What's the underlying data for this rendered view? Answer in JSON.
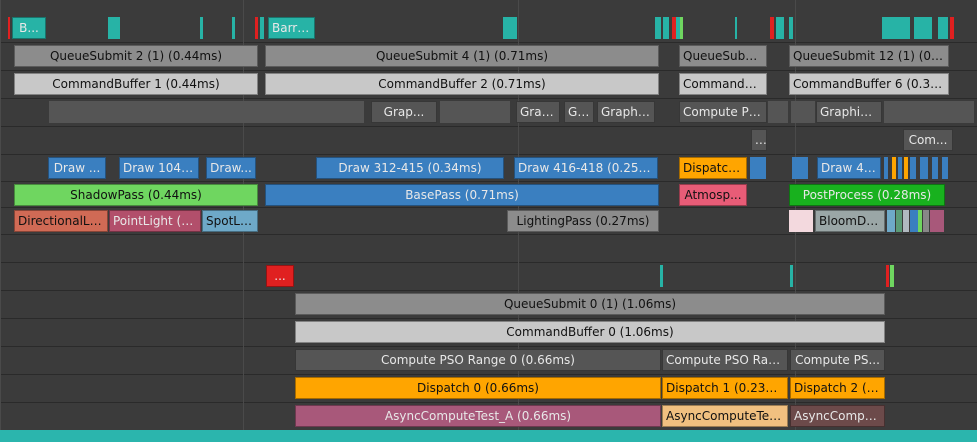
{
  "colors": {
    "background": "#3b3b3b",
    "teal": "#27b3a6",
    "red": "#e02020",
    "gray_mid": "#8c8c8c",
    "gray_light": "#c8c8c8",
    "gray_dark": "#555555",
    "blue": "#3a7fc0",
    "orange": "#ffa500",
    "green": "#6fd660",
    "bright_green": "#18b11e",
    "salmon": "#d06a55",
    "rose": "#b24f6b",
    "sky": "#6ea9c8",
    "pink": "#e85c77",
    "mauve": "#a8587a",
    "peach": "#f0c080",
    "brown": "#6c4a4a"
  },
  "blocks": [
    {
      "label": "B...",
      "color": "#27b3a6",
      "tone": "dark",
      "lane": 0
    },
    {
      "label": "Barri...",
      "color": "#27b3a6",
      "tone": "dark",
      "lane": 0
    },
    {
      "label": "QueueSubmit 2 (1) (0.44ms)",
      "color": "#8c8c8c",
      "tone": "light",
      "lane": 1
    },
    {
      "label": "QueueSubmit 4 (1) (0.71ms)",
      "color": "#8c8c8c",
      "tone": "light",
      "lane": 1
    },
    {
      "label": "QueueSubmi...",
      "color": "#8c8c8c",
      "tone": "light",
      "lane": 1
    },
    {
      "label": "QueueSubmit 12 (1) (0.30...",
      "color": "#8c8c8c",
      "tone": "light",
      "lane": 1
    },
    {
      "label": "CommandBuffer 1 (0.44ms)",
      "color": "#c8c8c8",
      "tone": "light",
      "lane": 2
    },
    {
      "label": "CommandBuffer 2 (0.71ms)",
      "color": "#c8c8c8",
      "tone": "light",
      "lane": 2
    },
    {
      "label": "CommandB...",
      "color": "#c8c8c8",
      "tone": "light",
      "lane": 2
    },
    {
      "label": "CommandBuffer 6 (0.30ms)",
      "color": "#c8c8c8",
      "tone": "light",
      "lane": 2
    },
    {
      "label": "Grap...",
      "color": "#555555",
      "tone": "dark",
      "lane": 3
    },
    {
      "label": "Grap...",
      "color": "#555555",
      "tone": "dark",
      "lane": 3
    },
    {
      "label": "Gr...",
      "color": "#555555",
      "tone": "dark",
      "lane": 3
    },
    {
      "label": "Graphic...",
      "color": "#555555",
      "tone": "dark",
      "lane": 3
    },
    {
      "label": "Compute PS...",
      "color": "#555555",
      "tone": "dark",
      "lane": 3
    },
    {
      "label": "Graphics ...",
      "color": "#555555",
      "tone": "dark",
      "lane": 3
    },
    {
      "label": "...",
      "color": "#555555",
      "tone": "dark",
      "lane": 4
    },
    {
      "label": "Com...",
      "color": "#555555",
      "tone": "dark",
      "lane": 4
    },
    {
      "label": "Draw ...",
      "color": "#3a7fc0",
      "tone": "dark",
      "lane": 5
    },
    {
      "label": "Draw 104-...",
      "color": "#3a7fc0",
      "tone": "dark",
      "lane": 5
    },
    {
      "label": "Draw...",
      "color": "#3a7fc0",
      "tone": "dark",
      "lane": 5
    },
    {
      "label": "Draw 312-415 (0.34ms)",
      "color": "#3a7fc0",
      "tone": "dark",
      "lane": 5
    },
    {
      "label": "Draw 416-418 (0.25ms)",
      "color": "#3a7fc0",
      "tone": "dark",
      "lane": 5
    },
    {
      "label": "Dispatch...",
      "color": "#ffa500",
      "tone": "light",
      "lane": 5
    },
    {
      "label": "Draw 42...",
      "color": "#3a7fc0",
      "tone": "dark",
      "lane": 5
    },
    {
      "label": "ShadowPass (0.44ms)",
      "color": "#6fd660",
      "tone": "light",
      "lane": 6
    },
    {
      "label": "BasePass (0.71ms)",
      "color": "#3a7fc0",
      "tone": "dark",
      "lane": 6
    },
    {
      "label": "Atmosp...",
      "color": "#e85c77",
      "tone": "light",
      "lane": 6
    },
    {
      "label": "PostProcess (0.28ms)",
      "color": "#18b11e",
      "tone": "dark",
      "lane": 6
    },
    {
      "label": "DirectionalLig...",
      "color": "#d06a55",
      "tone": "light",
      "lane": 7
    },
    {
      "label": "PointLight (0...",
      "color": "#b24f6b",
      "tone": "dark",
      "lane": 7
    },
    {
      "label": "SpotLi...",
      "color": "#6ea9c8",
      "tone": "light",
      "lane": 7
    },
    {
      "label": "LightingPass (0.27ms)",
      "color": "#8c8c8c",
      "tone": "light",
      "lane": 7
    },
    {
      "label": "BloomDo...",
      "color": "#9aa6a6",
      "tone": "light",
      "lane": 7
    },
    {
      "label": "...",
      "color": "#e02020",
      "tone": "dark",
      "lane": 9
    },
    {
      "label": "QueueSubmit 0 (1) (1.06ms)",
      "color": "#8c8c8c",
      "tone": "light",
      "lane": 10
    },
    {
      "label": "CommandBuffer 0 (1.06ms)",
      "color": "#c8c8c8",
      "tone": "light",
      "lane": 11
    },
    {
      "label": "Compute PSO Range 0 (0.66ms)",
      "color": "#555555",
      "tone": "dark",
      "lane": 12
    },
    {
      "label": "Compute PSO Rang...",
      "color": "#555555",
      "tone": "dark",
      "lane": 12
    },
    {
      "label": "Compute PS...",
      "color": "#555555",
      "tone": "dark",
      "lane": 12
    },
    {
      "label": "Dispatch 0 (0.66ms)",
      "color": "#ffa500",
      "tone": "light",
      "lane": 13
    },
    {
      "label": "Dispatch 1 (0.23ms)",
      "color": "#ffa500",
      "tone": "light",
      "lane": 13
    },
    {
      "label": "Dispatch 2 (0...",
      "color": "#ffa500",
      "tone": "light",
      "lane": 13
    },
    {
      "label": "AsyncComputeTest_A (0.66ms)",
      "color": "#a8587a",
      "tone": "dark",
      "lane": 14
    },
    {
      "label": "AsyncComputeTest...",
      "color": "#f0c080",
      "tone": "light",
      "lane": 14
    },
    {
      "label": "AsyncCompu...",
      "color": "#6c4a4a",
      "tone": "dark",
      "lane": 14
    }
  ]
}
